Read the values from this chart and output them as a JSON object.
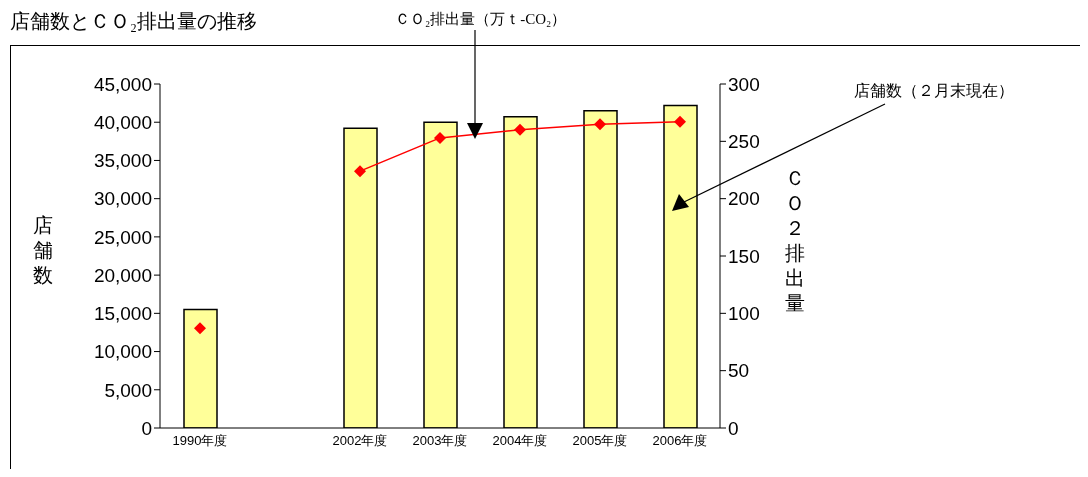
{
  "chart_data": {
    "type": "bar",
    "title": "店舗数とＣＯ₂排出量の推移",
    "ylabel": "店舗数",
    "y2label": "ＣＯ２排出量",
    "annotations": [
      "ＣＯ₂排出量（万ｔ-CO₂）",
      "店舗数（２月末現在）"
    ],
    "categories": [
      "1990年度",
      null,
      "2002年度",
      "2003年度",
      "2004年度",
      "2005年度",
      "2006年度"
    ],
    "series": [
      {
        "color": "#ffff99",
        "values": [
          15500,
          null,
          39200,
          40000,
          40700,
          41500,
          42200
        ]
      },
      {
        "type": "line",
        "axis": "y2",
        "color": "#ff0000",
        "marker": "diamond",
        "values": [
          87,
          null,
          224,
          253,
          260,
          265,
          267
        ]
      }
    ],
    "ylim": [
      0,
      45000
    ],
    "yticks": [
      0,
      {
        "value": 5000,
        "label": "5,000"
      },
      {
        "value": 10000,
        "label": "10,000"
      },
      {
        "value": 15000,
        "label": "15,000"
      },
      {
        "value": 20000,
        "label": "20,000"
      },
      {
        "value": 25000,
        "label": "25,000"
      },
      {
        "value": 30000,
        "label": "30,000"
      },
      {
        "value": 35000,
        "label": "35,000"
      },
      {
        "value": 40000,
        "label": "40,000"
      },
      {
        "value": 45000,
        "label": "45,000"
      }
    ],
    "y2lim": [
      0,
      300
    ],
    "y2ticks": [
      0,
      50,
      100,
      150,
      200,
      250,
      300
    ],
    "grid": false,
    "legend": false
  }
}
